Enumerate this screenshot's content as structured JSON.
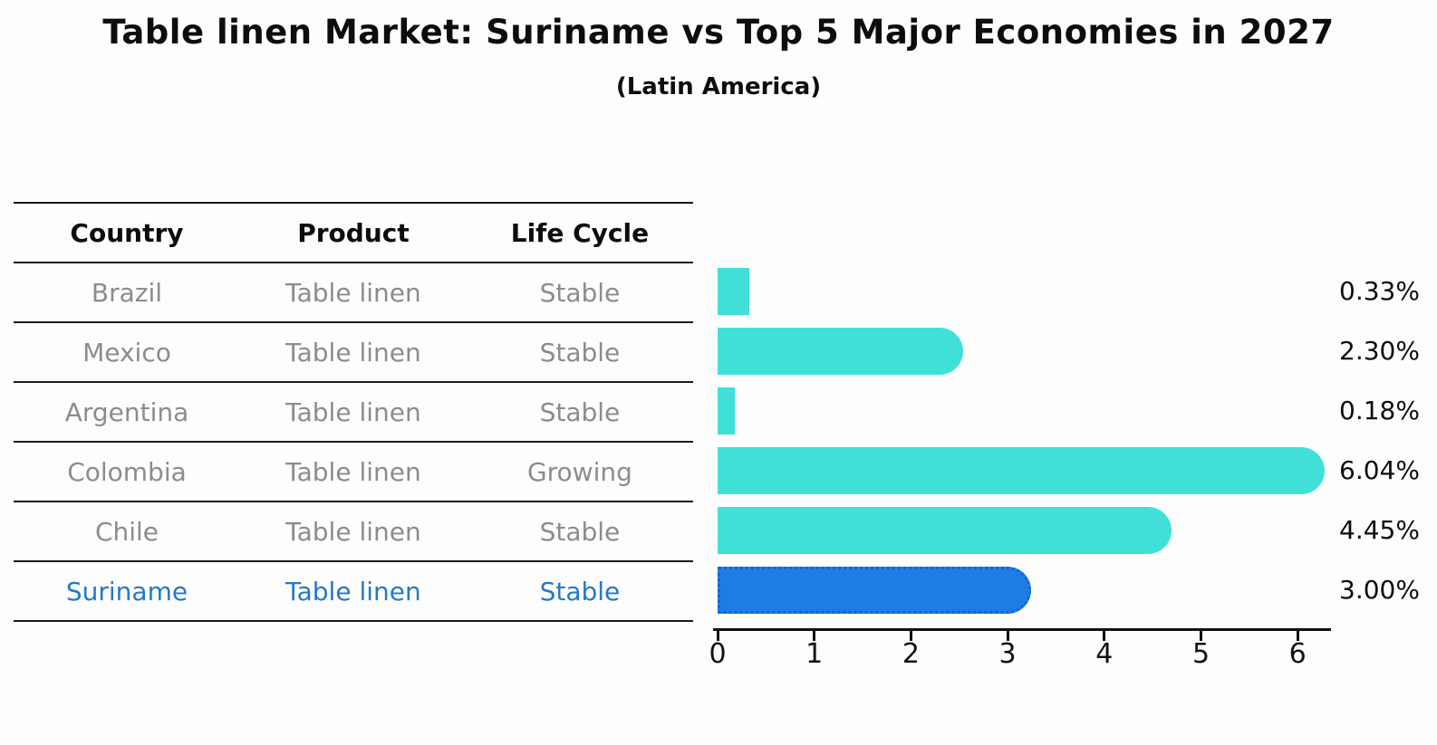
{
  "title": "Table linen Market: Suriname vs Top 5 Major Economies in 2027",
  "subtitle": "(Latin America)",
  "table": {
    "headers": [
      "Country",
      "Product",
      "Life Cycle"
    ],
    "rows": [
      {
        "country": "Brazil",
        "product": "Table linen",
        "life_cycle": "Stable",
        "highlight": false
      },
      {
        "country": "Mexico",
        "product": "Table linen",
        "life_cycle": "Stable",
        "highlight": false
      },
      {
        "country": "Argentina",
        "product": "Table linen",
        "life_cycle": "Stable",
        "highlight": false
      },
      {
        "country": "Colombia",
        "product": "Table linen",
        "life_cycle": "Growing",
        "highlight": false
      },
      {
        "country": "Chile",
        "product": "Table linen",
        "life_cycle": "Stable",
        "highlight": false
      },
      {
        "country": "Suriname",
        "product": "Table linen",
        "life_cycle": "Stable",
        "highlight": true
      }
    ]
  },
  "chart_data": {
    "type": "bar",
    "orientation": "horizontal",
    "title": "Table linen Market: Suriname vs Top 5 Major Economies in 2027",
    "subtitle": "(Latin America)",
    "categories": [
      "Brazil",
      "Mexico",
      "Argentina",
      "Colombia",
      "Chile",
      "Suriname"
    ],
    "values": [
      0.33,
      2.3,
      0.18,
      6.04,
      4.45,
      3.0
    ],
    "value_labels": [
      "0.33%",
      "2.30%",
      "0.18%",
      "6.04%",
      "4.45%",
      "3.00%"
    ],
    "highlight_index": 5,
    "xlabel": "",
    "ylabel": "",
    "xlim": [
      0,
      6.35
    ],
    "x_ticks": [
      0,
      1,
      2,
      3,
      4,
      5,
      6
    ],
    "grid": false,
    "legend_position": "none"
  },
  "colors": {
    "bar": "#40E0D8",
    "highlight_bar": "#1E7DE5",
    "highlight_bar_border": "#1565C8",
    "highlight_text": "#2579c8",
    "table_text": "#8c8c8c",
    "heading_text": "#0d0d0d",
    "axis": "#111111"
  }
}
